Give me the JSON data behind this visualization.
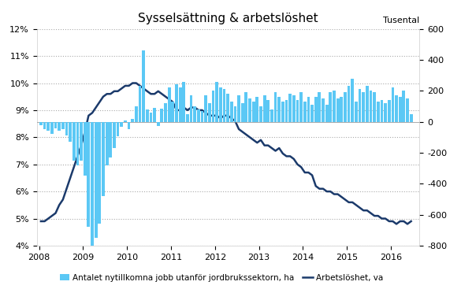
{
  "title": "Sysselsättning & arbetslöshet",
  "right_axis_label": "Tusental",
  "legend_bar": "Antalet nytillkomna jobb utanför jordbrukssektorn, ha",
  "legend_line": "Arbetslöshet, va",
  "bar_color": "#5BC8F5",
  "line_color": "#1B3A6B",
  "background_color": "#ffffff",
  "ylim_left": [
    0.04,
    0.12
  ],
  "ylim_right": [
    -800,
    600
  ],
  "yticks_left": [
    0.04,
    0.05,
    0.06,
    0.07,
    0.08,
    0.09,
    0.1,
    0.11,
    0.12
  ],
  "ytick_labels_left": [
    "4%",
    "5%",
    "6%",
    "7%",
    "8%",
    "9%",
    "10%",
    "11%",
    "12%"
  ],
  "yticks_right": [
    -800,
    -600,
    -400,
    -200,
    0,
    200,
    400,
    600
  ],
  "xtick_years": [
    2008,
    2009,
    2010,
    2011,
    2012,
    2013,
    2014,
    2015,
    2016
  ],
  "bar_values_thousands": [
    -20,
    -50,
    -60,
    -80,
    -40,
    -60,
    -50,
    -90,
    -130,
    -250,
    -280,
    -250,
    -350,
    -680,
    -800,
    -750,
    -660,
    -480,
    -280,
    -230,
    -170,
    -95,
    -30,
    10,
    -45,
    20,
    100,
    230,
    460,
    80,
    60,
    90,
    -26,
    85,
    120,
    220,
    130,
    240,
    220,
    260,
    50,
    170,
    100,
    80,
    70,
    170,
    120,
    200,
    260,
    220,
    210,
    180,
    130,
    100,
    170,
    120,
    190,
    150,
    130,
    160,
    100,
    170,
    140,
    80,
    190,
    160,
    130,
    140,
    180,
    170,
    140,
    190,
    130,
    160,
    110,
    160,
    190,
    150,
    110,
    190,
    200,
    150,
    160,
    190,
    230,
    280,
    130,
    210,
    190,
    230,
    200,
    190,
    130,
    140,
    120,
    140,
    220,
    170,
    160,
    200,
    150,
    50
  ],
  "unemployment_pct": [
    0.049,
    0.049,
    0.05,
    0.051,
    0.052,
    0.055,
    0.057,
    0.061,
    0.065,
    0.069,
    0.073,
    0.077,
    0.082,
    0.088,
    0.089,
    0.091,
    0.093,
    0.095,
    0.096,
    0.096,
    0.097,
    0.097,
    0.098,
    0.099,
    0.099,
    0.1,
    0.1,
    0.099,
    0.098,
    0.097,
    0.096,
    0.096,
    0.097,
    0.096,
    0.095,
    0.094,
    0.093,
    0.09,
    0.09,
    0.091,
    0.09,
    0.091,
    0.091,
    0.09,
    0.09,
    0.089,
    0.088,
    0.088,
    0.088,
    0.087,
    0.088,
    0.088,
    0.087,
    0.086,
    0.083,
    0.082,
    0.081,
    0.08,
    0.079,
    0.078,
    0.079,
    0.077,
    0.077,
    0.076,
    0.075,
    0.076,
    0.074,
    0.073,
    0.073,
    0.072,
    0.07,
    0.069,
    0.067,
    0.067,
    0.066,
    0.062,
    0.061,
    0.061,
    0.06,
    0.06,
    0.059,
    0.059,
    0.058,
    0.057,
    0.056,
    0.056,
    0.055,
    0.054,
    0.053,
    0.053,
    0.052,
    0.051,
    0.051,
    0.05,
    0.05,
    0.049,
    0.049,
    0.048,
    0.049,
    0.049,
    0.048,
    0.049
  ]
}
